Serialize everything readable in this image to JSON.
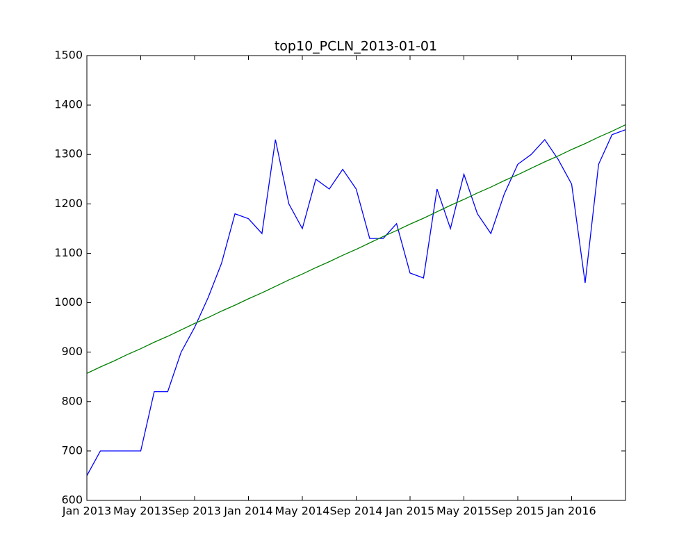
{
  "chart_data": {
    "type": "line",
    "title": "top10_PCLN_2013-01-01",
    "x": [
      "2013-01",
      "2013-02",
      "2013-03",
      "2013-04",
      "2013-05",
      "2013-06",
      "2013-07",
      "2013-08",
      "2013-09",
      "2013-10",
      "2013-11",
      "2013-12",
      "2014-01",
      "2014-02",
      "2014-03",
      "2014-04",
      "2014-05",
      "2014-06",
      "2014-07",
      "2014-08",
      "2014-09",
      "2014-10",
      "2014-11",
      "2014-12",
      "2015-01",
      "2015-02",
      "2015-03",
      "2015-04",
      "2015-05",
      "2015-06",
      "2015-07",
      "2015-08",
      "2015-09",
      "2015-10",
      "2015-11",
      "2015-12",
      "2016-01",
      "2016-02",
      "2016-03",
      "2016-04",
      "2016-05"
    ],
    "series": [
      {
        "color": "#0000ff",
        "values": [
          650,
          700,
          700,
          700,
          700,
          820,
          820,
          900,
          950,
          1010,
          1080,
          1180,
          1170,
          1140,
          1330,
          1200,
          1150,
          1250,
          1230,
          1270,
          1230,
          1130,
          1130,
          1160,
          1060,
          1050,
          1230,
          1150,
          1260,
          1180,
          1140,
          1220,
          1280,
          1300,
          1330,
          1290,
          1240,
          1040,
          1280,
          1340,
          1350
        ]
      },
      {
        "color": "#008000",
        "values": [
          857,
          870,
          882,
          895,
          907,
          920,
          932,
          945,
          958,
          970,
          983,
          995,
          1008,
          1020,
          1033,
          1046,
          1058,
          1071,
          1083,
          1096,
          1108,
          1121,
          1134,
          1146,
          1159,
          1171,
          1184,
          1197,
          1209,
          1222,
          1234,
          1247,
          1259,
          1272,
          1285,
          1297,
          1310,
          1322,
          1335,
          1347,
          1360
        ]
      }
    ],
    "xlim": [
      "2013-01",
      "2016-05"
    ],
    "xticks": [
      {
        "value": "2013-01",
        "label": "Jan 2013"
      },
      {
        "value": "2013-05",
        "label": "May 2013"
      },
      {
        "value": "2013-09",
        "label": "Sep 2013"
      },
      {
        "value": "2014-01",
        "label": "Jan 2014"
      },
      {
        "value": "2014-05",
        "label": "May 2014"
      },
      {
        "value": "2014-09",
        "label": "Sep 2014"
      },
      {
        "value": "2015-01",
        "label": "Jan 2015"
      },
      {
        "value": "2015-05",
        "label": "May 2015"
      },
      {
        "value": "2015-09",
        "label": "Sep 2015"
      },
      {
        "value": "2016-01",
        "label": "Jan 2016"
      }
    ],
    "ylim": [
      600,
      1500
    ],
    "yticks": [
      600,
      700,
      800,
      900,
      1000,
      1100,
      1200,
      1300,
      1400,
      1500
    ]
  }
}
